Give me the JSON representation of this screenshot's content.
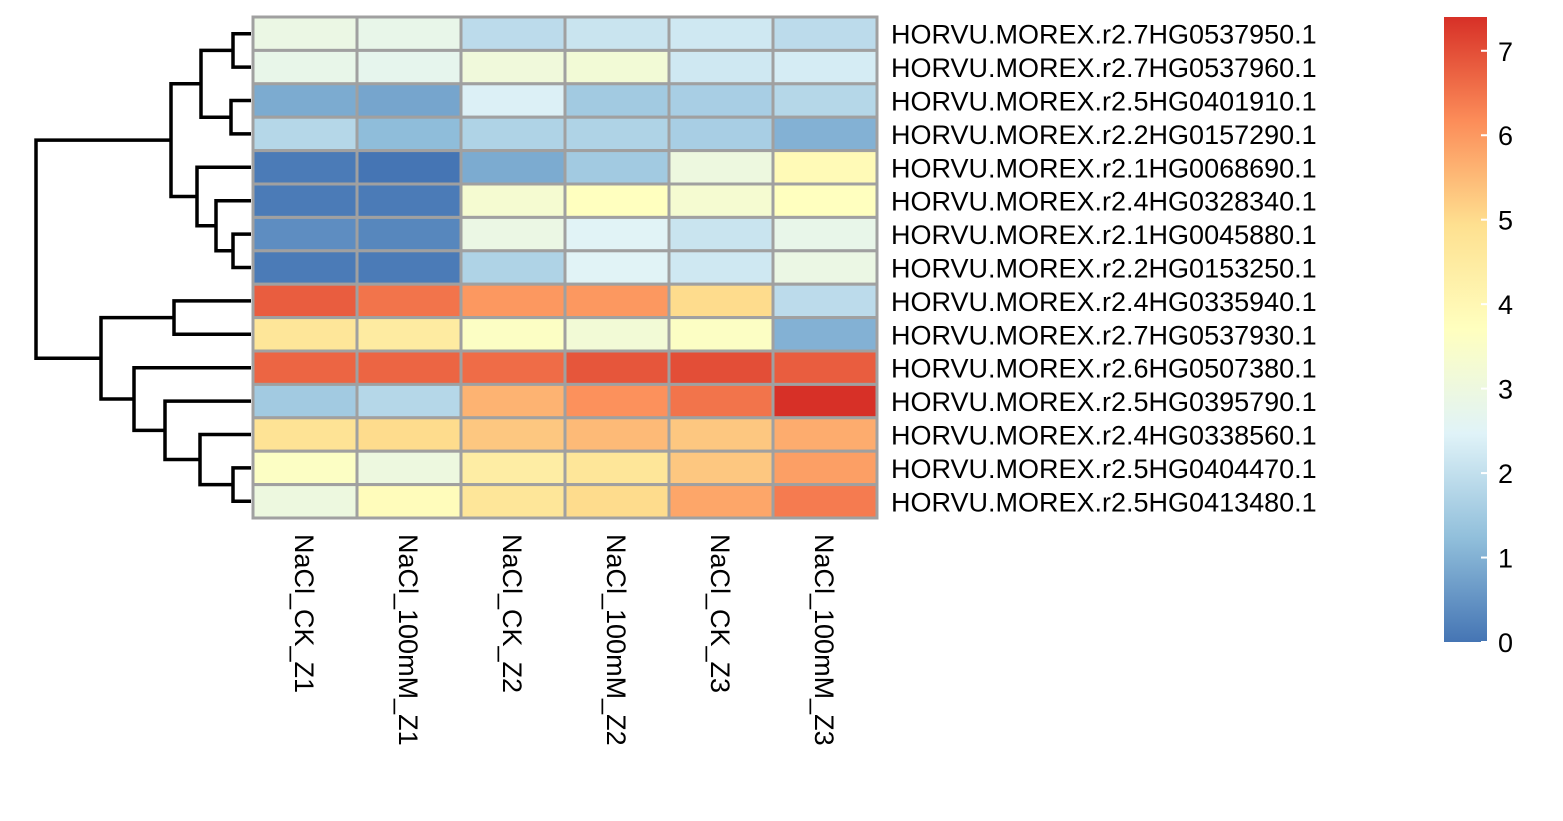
{
  "chart_data": {
    "type": "heatmap",
    "columns": [
      "NaCl_CK_Z1",
      "NaCl_100mM_Z1",
      "NaCl_CK_Z2",
      "NaCl_100mM_Z2",
      "NaCl_CK_Z3",
      "NaCl_100mM_Z3"
    ],
    "rows": [
      "HORVU.MOREX.r2.7HG0537950.1",
      "HORVU.MOREX.r2.7HG0537960.1",
      "HORVU.MOREX.r2.5HG0401910.1",
      "HORVU.MOREX.r2.2HG0157290.1",
      "HORVU.MOREX.r2.1HG0068690.1",
      "HORVU.MOREX.r2.4HG0328340.1",
      "HORVU.MOREX.r2.1HG0045880.1",
      "HORVU.MOREX.r2.2HG0153250.1",
      "HORVU.MOREX.r2.4HG0335940.1",
      "HORVU.MOREX.r2.7HG0537930.1",
      "HORVU.MOREX.r2.6HG0507380.1",
      "HORVU.MOREX.r2.5HG0395790.1",
      "HORVU.MOREX.r2.4HG0338560.1",
      "HORVU.MOREX.r2.5HG0404470.1",
      "HORVU.MOREX.r2.5HG0413480.1"
    ],
    "values": [
      [
        2.9,
        2.8,
        1.9,
        2.1,
        2.2,
        1.9
      ],
      [
        2.8,
        2.7,
        3.1,
        3.2,
        2.2,
        2.3
      ],
      [
        0.9,
        0.8,
        2.4,
        1.5,
        1.6,
        1.8
      ],
      [
        1.8,
        1.2,
        1.7,
        1.7,
        1.6,
        1.0
      ],
      [
        0.1,
        0.0,
        0.9,
        1.5,
        3.0,
        3.9
      ],
      [
        0.1,
        0.1,
        3.3,
        3.7,
        3.3,
        3.7
      ],
      [
        0.4,
        0.3,
        2.9,
        2.5,
        2.1,
        2.8
      ],
      [
        0.1,
        0.1,
        1.7,
        2.5,
        2.2,
        2.9
      ],
      [
        6.8,
        6.5,
        6.0,
        6.0,
        5.0,
        1.9
      ],
      [
        4.7,
        4.5,
        3.6,
        3.2,
        3.6,
        1.0
      ],
      [
        6.7,
        6.7,
        6.6,
        6.9,
        7.0,
        6.8
      ],
      [
        1.5,
        1.8,
        5.6,
        6.1,
        6.5,
        7.4
      ],
      [
        4.8,
        5.0,
        5.3,
        5.5,
        5.3,
        5.7
      ],
      [
        3.6,
        3.0,
        4.4,
        4.7,
        5.3,
        5.9
      ],
      [
        3.0,
        3.8,
        4.7,
        5.0,
        5.8,
        6.4
      ]
    ],
    "colorbar": {
      "min": 0,
      "max": 7.4,
      "ticks": [
        0,
        1,
        2,
        3,
        4,
        5,
        6,
        7
      ],
      "colors": [
        "#4575b4",
        "#91bfdb",
        "#e0f3f8",
        "#ffffbf",
        "#fee090",
        "#fc8d59",
        "#d73027"
      ]
    },
    "cell_border_color": "#a0a0a0",
    "row_dendrogram": true,
    "legend": "right"
  }
}
